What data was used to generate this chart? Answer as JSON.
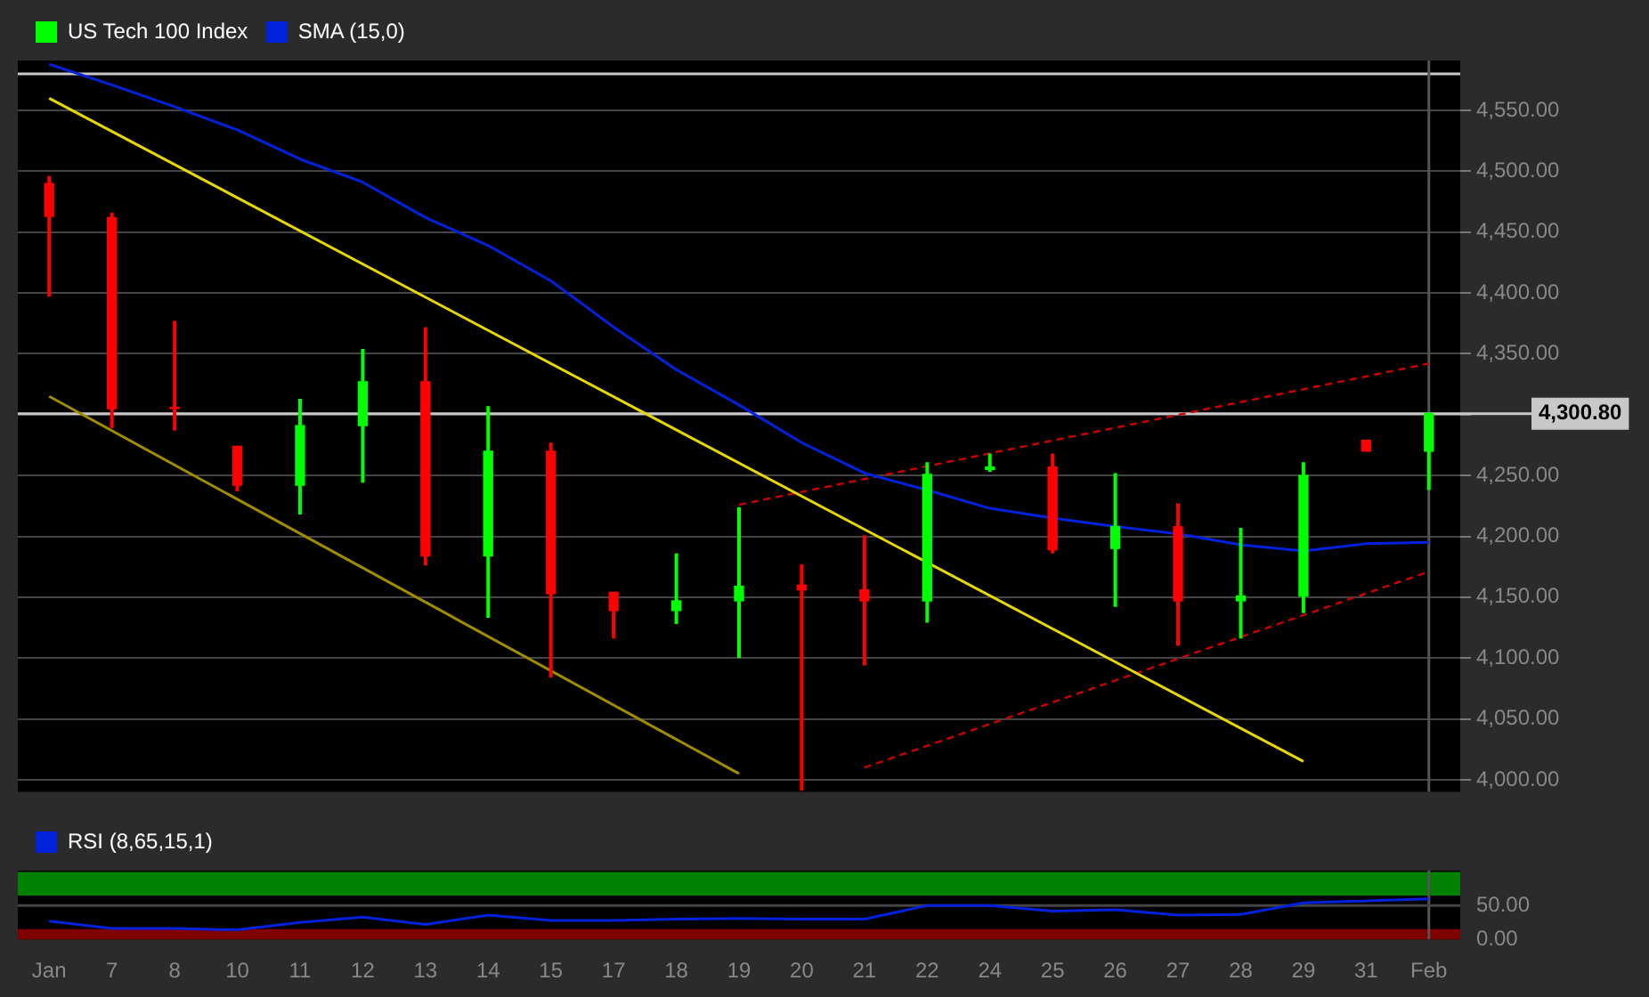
{
  "chart_data": [
    {
      "type": "candlestick",
      "categories": [
        "Jan",
        "7",
        "8",
        "10",
        "11",
        "12",
        "13",
        "14",
        "15",
        "17",
        "18",
        "19",
        "20",
        "21",
        "22",
        "24",
        "25",
        "26",
        "27",
        "28",
        "29",
        "31",
        "Feb"
      ],
      "series": [
        {
          "name": "US Tech 100 Index",
          "type": "candlestick",
          "ohlc": [
            [
              4490,
              4496,
              4397,
              4463
            ],
            [
              4462,
              4466,
              4289,
              4305
            ],
            [
              4306,
              4377,
              4287,
              4305
            ],
            [
              4274,
              4274,
              4237,
              4242
            ],
            [
              4242,
              4313,
              4218,
              4291
            ],
            [
              4291,
              4354,
              4244,
              4327
            ],
            [
              4327,
              4372,
              4176,
              4184
            ],
            [
              4184,
              4307,
              4133,
              4270
            ],
            [
              4270,
              4277,
              4084,
              4153
            ],
            [
              4154,
              4154,
              4116,
              4139
            ],
            [
              4139,
              4186,
              4128,
              4147
            ],
            [
              4147,
              4224,
              4100,
              4159
            ],
            [
              4160,
              4177,
              3991,
              4156
            ],
            [
              4156,
              4201,
              4094,
              4147
            ],
            [
              4147,
              4261,
              4129,
              4251
            ],
            [
              4255,
              4268,
              4253,
              4257
            ],
            [
              4257,
              4268,
              4186,
              4189
            ],
            [
              4190,
              4252,
              4142,
              4208
            ],
            [
              4208,
              4227,
              4110,
              4147
            ],
            [
              4147,
              4207,
              4116,
              4151
            ],
            [
              4151,
              4261,
              4137,
              4250
            ],
            [
              4279,
              4279,
              4270,
              4270
            ],
            [
              4270,
              4302,
              4238,
              4300.8
            ]
          ],
          "colors": [
            "#ff0000",
            "#ff0000",
            "#ff0000",
            "#ff0000",
            "#00ff00",
            "#00ff00",
            "#ff0000",
            "#00ff00",
            "#ff0000",
            "#ff0000",
            "#00ff00",
            "#00ff00",
            "#ff0000",
            "#ff0000",
            "#00ff00",
            "#00ff00",
            "#ff0000",
            "#00ff00",
            "#ff0000",
            "#00ff00",
            "#00ff00",
            "#ff0000",
            "#00ff00"
          ]
        },
        {
          "name": "SMA (15,0)",
          "type": "line",
          "color": "#0022dd",
          "values": [
            4588,
            4571,
            4553,
            4534,
            4510,
            4491,
            4462,
            4439,
            4410,
            4372,
            4337,
            4308,
            4277,
            4252,
            4238,
            4223,
            4215,
            4208,
            4202,
            4193,
            4188,
            4194,
            4195
          ]
        },
        {
          "type": "line",
          "color": "#e6d800",
          "values": [
            4560,
            null,
            null,
            null,
            null,
            null,
            null,
            null,
            null,
            null,
            null,
            null,
            null,
            null,
            null,
            null,
            null,
            null,
            null,
            null,
            4015,
            null,
            null
          ]
        },
        {
          "type": "line",
          "color": "#a08c00",
          "values": [
            4315,
            null,
            null,
            null,
            null,
            null,
            null,
            null,
            null,
            null,
            null,
            4005,
            null,
            null,
            null,
            null,
            null,
            null,
            null,
            null,
            null,
            null,
            null
          ]
        },
        {
          "type": "line",
          "color": "#cc0000",
          "line_style": "dashed",
          "values": [
            null,
            null,
            null,
            null,
            null,
            null,
            null,
            null,
            null,
            null,
            null,
            4226,
            null,
            null,
            null,
            null,
            null,
            null,
            null,
            null,
            null,
            null,
            4342
          ]
        },
        {
          "type": "line",
          "color": "#cc0000",
          "line_style": "dashed",
          "values": [
            null,
            null,
            null,
            null,
            null,
            null,
            null,
            null,
            null,
            null,
            null,
            null,
            null,
            4010,
            null,
            null,
            null,
            null,
            null,
            null,
            null,
            null,
            4171
          ]
        }
      ],
      "ylim": [
        3990,
        4591
      ],
      "yticks": [
        {
          "value": 4000,
          "label": "4,000.00"
        },
        {
          "value": 4050,
          "label": "4,050.00"
        },
        {
          "value": 4100,
          "label": "4,100.00"
        },
        {
          "value": 4150,
          "label": "4,150.00"
        },
        {
          "value": 4200,
          "label": "4,200.00"
        },
        {
          "value": 4250,
          "label": "4,250.00"
        },
        {
          "value": 4300,
          "label": null
        },
        {
          "value": 4350,
          "label": "4,350.00"
        },
        {
          "value": 4400,
          "label": "4,400.00"
        },
        {
          "value": 4450,
          "label": "4,450.00"
        },
        {
          "value": 4500,
          "label": "4,500.00"
        },
        {
          "value": 4550,
          "label": "4,550.00"
        }
      ],
      "ref_lines": [
        {
          "axis": "y",
          "value": 4300.8,
          "label": "4,300.80",
          "color": "#c8c8c8"
        },
        {
          "axis": "y",
          "value": 4580,
          "color": "#c8c8c8"
        },
        {
          "axis": "x",
          "value": "Feb",
          "color": "#555555"
        }
      ],
      "grid": "y",
      "legend": "top left",
      "tick_labels": "y",
      "marker": "none"
    },
    {
      "type": "line",
      "categories": [
        "Jan",
        "7",
        "8",
        "10",
        "11",
        "12",
        "13",
        "14",
        "15",
        "17",
        "18",
        "19",
        "20",
        "21",
        "22",
        "24",
        "25",
        "26",
        "27",
        "28",
        "29",
        "31",
        "Feb"
      ],
      "series": [
        {
          "name": "RSI (8,65,15,1)",
          "color": "#0022dd",
          "values": [
            27,
            16,
            16,
            14,
            25,
            33,
            22,
            36,
            28,
            28,
            30,
            31,
            30,
            30,
            50,
            50,
            42,
            44,
            36,
            37,
            54,
            57,
            60
          ]
        }
      ],
      "ylim": [
        0,
        102
      ],
      "yticks": [
        {
          "value": 0,
          "label": "0.00"
        },
        {
          "value": 50,
          "label": "50.00"
        }
      ],
      "bands": [
        {
          "axis": "y",
          "from": 65,
          "to": 100,
          "color": "#008000"
        },
        {
          "axis": "y",
          "from": 0,
          "to": 15,
          "color": "#800000"
        }
      ],
      "ref_lines": [
        {
          "axis": "x",
          "value": "Feb",
          "color": "#555555"
        },
        {
          "axis": "y",
          "value": 50,
          "color": "#444444"
        }
      ],
      "legend": "top left",
      "marker": "none"
    }
  ]
}
